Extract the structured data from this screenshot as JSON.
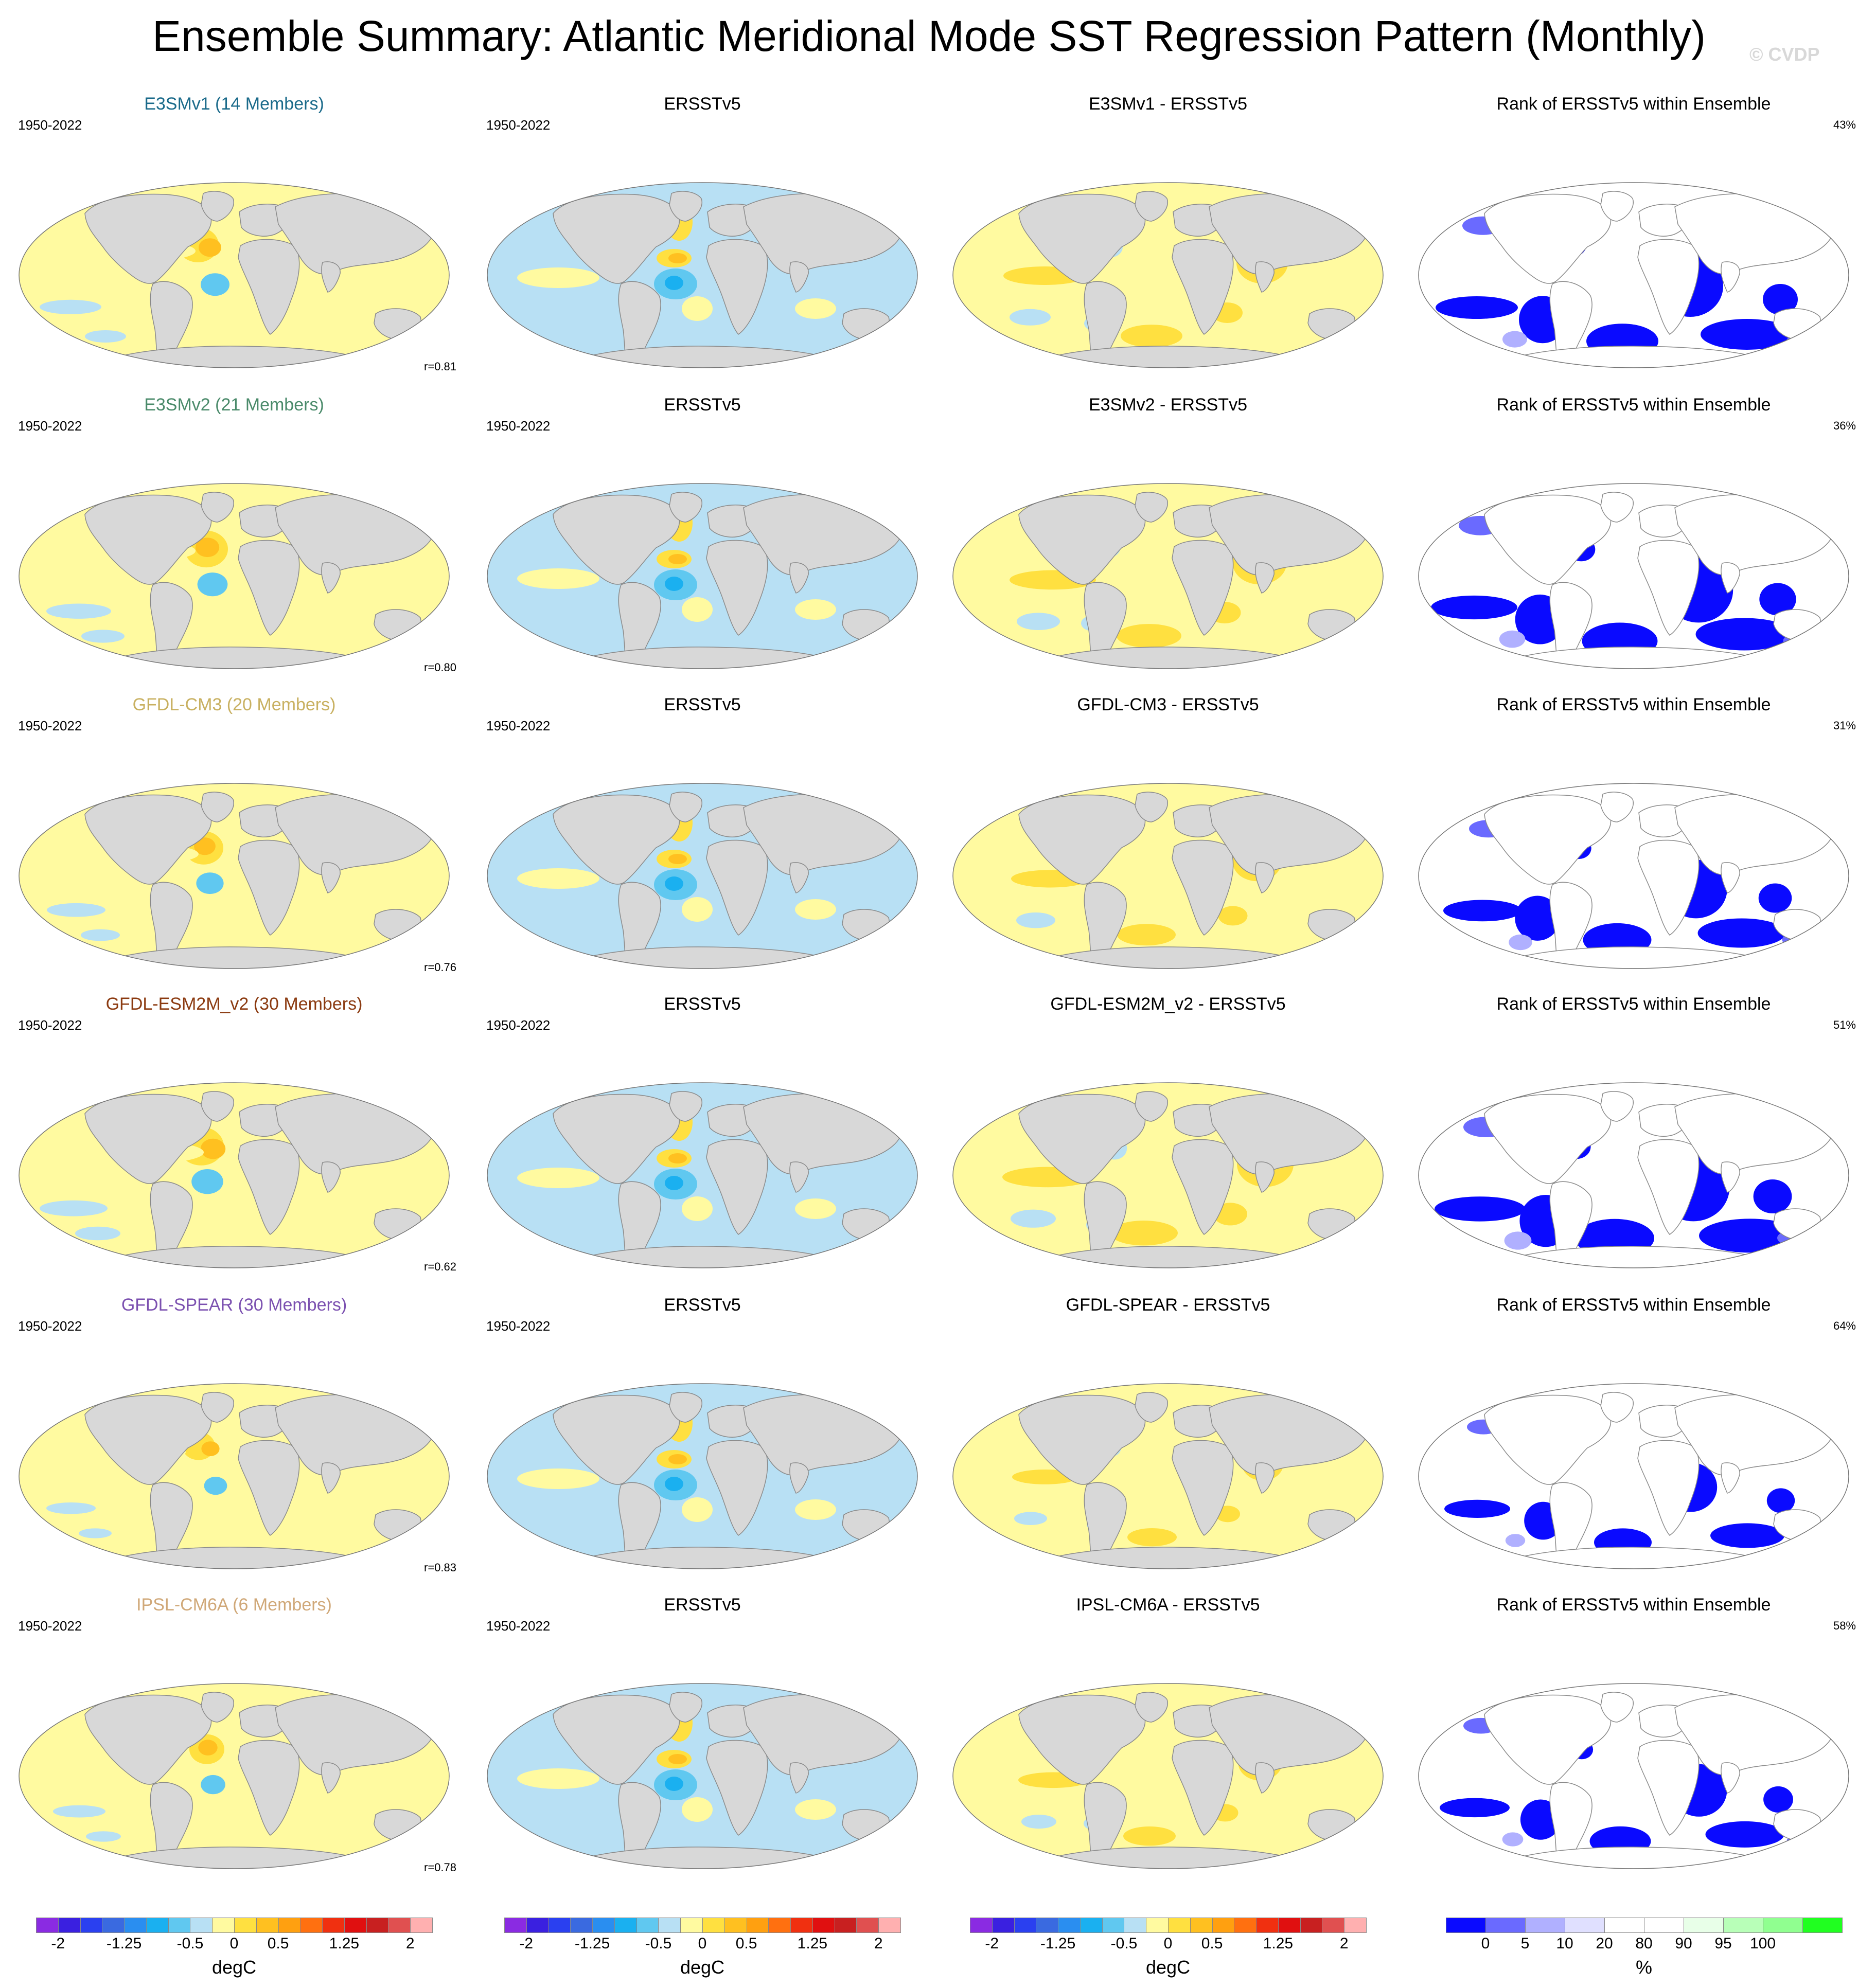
{
  "title": "Ensemble Summary: Atlantic Meridional Mode SST Regression Pattern (Monthly)",
  "watermark": "© CVDP",
  "observation": "ERSSTv5",
  "period": "1950-2022",
  "rank_title": "Rank of ERSSTv5 within Ensemble",
  "rows": [
    {
      "model": "E3SMv1 (14 Members)",
      "model_color": "#1a6a8a",
      "diff_title": "E3SMv1 - ERSSTv5",
      "pattern_corr": "r=0.81",
      "rank_pct": "43%",
      "intensity": 1.0
    },
    {
      "model": "E3SMv2 (21 Members)",
      "model_color": "#4a8a6a",
      "diff_title": "E3SMv2 - ERSSTv5",
      "pattern_corr": "r=0.80",
      "rank_pct": "36%",
      "intensity": 1.05
    },
    {
      "model": "GFDL-CM3 (20 Members)",
      "model_color": "#c8b060",
      "diff_title": "GFDL-CM3 - ERSSTv5",
      "pattern_corr": "r=0.76",
      "rank_pct": "31%",
      "intensity": 0.95
    },
    {
      "model": "GFDL-ESM2M_v2 (30 Members)",
      "model_color": "#8b3a10",
      "diff_title": "GFDL-ESM2M_v2 - ERSSTv5",
      "pattern_corr": "r=0.62",
      "rank_pct": "51%",
      "intensity": 1.1
    },
    {
      "model": "GFDL-SPEAR (30 Members)",
      "model_color": "#7b50b0",
      "diff_title": "GFDL-SPEAR - ERSSTv5",
      "pattern_corr": "r=0.83",
      "rank_pct": "64%",
      "intensity": 0.8
    },
    {
      "model": "IPSL-CM6A (6 Members)",
      "model_color": "#d0a878",
      "diff_title": "IPSL-CM6A - ERSSTv5",
      "pattern_corr": "r=0.78",
      "rank_pct": "58%",
      "intensity": 0.85
    }
  ],
  "colorbar_sst": {
    "colors": [
      "#8a2be2",
      "#3a20e0",
      "#2a40f0",
      "#3a6ae0",
      "#2a8ef0",
      "#1ab0f0",
      "#60c8f0",
      "#b8e0f4",
      "#fffaa0",
      "#ffe040",
      "#ffc020",
      "#ffa010",
      "#ff7010",
      "#f03010",
      "#e01010",
      "#c82020",
      "#e05050",
      "#ffb0b0"
    ],
    "tick_labels": [
      "-2",
      "-1.25",
      "-0.5",
      "0",
      "0.5",
      "1.25",
      "2"
    ],
    "units": "degC"
  },
  "colorbar_rank": {
    "colors": [
      "#0a0aff",
      "#6a6aff",
      "#b0b0ff",
      "#e0e0ff",
      "#ffffff",
      "#ffffff",
      "#e8ffe8",
      "#b8ffb8",
      "#90ff90",
      "#20ff20"
    ],
    "tick_labels": [
      "0",
      "5",
      "10",
      "20",
      "80",
      "90",
      "95",
      "100"
    ],
    "units": "%"
  }
}
